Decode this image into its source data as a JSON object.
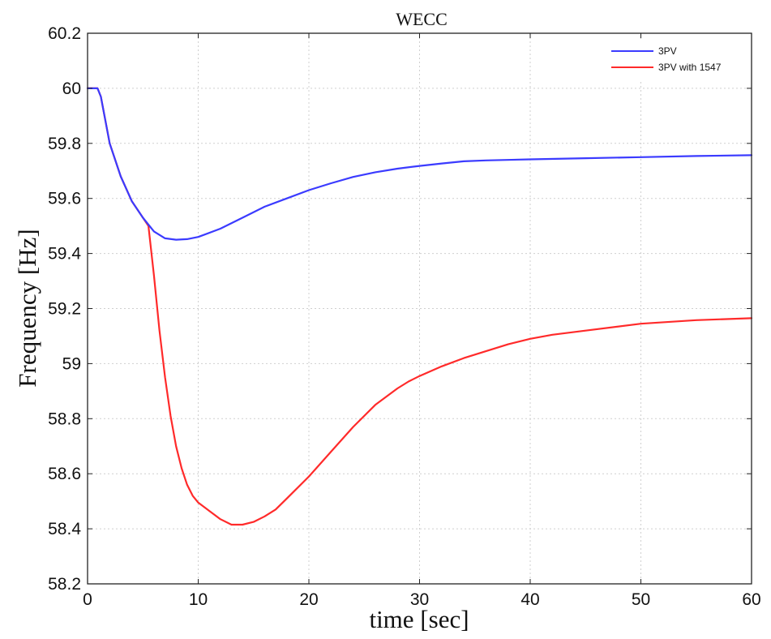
{
  "chart_data": {
    "type": "line",
    "title": "WECC",
    "xlabel": "time [sec]",
    "ylabel": "Frequency [Hz]",
    "xlim": [
      0,
      60
    ],
    "ylim": [
      58.2,
      60.2
    ],
    "xticks": [
      0,
      10,
      20,
      30,
      40,
      50,
      60
    ],
    "yticks": [
      58.2,
      58.4,
      58.6,
      58.8,
      59,
      59.2,
      59.4,
      59.6,
      59.8,
      60,
      60.2
    ],
    "grid": true,
    "legend_position": "top-right",
    "series": [
      {
        "name": "3PV",
        "color": "#3b3bff",
        "x": [
          0,
          0.9,
          1.2,
          2,
          3,
          4,
          5,
          6,
          7,
          8,
          9,
          10,
          12,
          14,
          16,
          18,
          20,
          22,
          24,
          26,
          28,
          30,
          32,
          34,
          36,
          40,
          45,
          50,
          55,
          60
        ],
        "y": [
          60.0,
          60.0,
          59.97,
          59.8,
          59.68,
          59.59,
          59.53,
          59.48,
          59.455,
          59.45,
          59.452,
          59.46,
          59.49,
          59.53,
          59.57,
          59.6,
          59.63,
          59.655,
          59.678,
          59.695,
          59.708,
          59.718,
          59.727,
          59.735,
          59.738,
          59.742,
          59.746,
          59.75,
          59.754,
          59.757
        ]
      },
      {
        "name": "3PV with 1547",
        "color": "#ff2a2a",
        "x": [
          0,
          0.9,
          1.2,
          2,
          3,
          4,
          5,
          5.5,
          6,
          6.5,
          7,
          7.5,
          8,
          8.5,
          9,
          9.5,
          10,
          10.5,
          11,
          12,
          13,
          14,
          15,
          16,
          17,
          18,
          20,
          22,
          24,
          26,
          28,
          29,
          30,
          32,
          34,
          36,
          38,
          40,
          42,
          45,
          50,
          55,
          60
        ],
        "y": [
          60.0,
          60.0,
          59.97,
          59.8,
          59.68,
          59.59,
          59.53,
          59.5,
          59.32,
          59.12,
          58.95,
          58.81,
          58.7,
          58.62,
          58.56,
          58.52,
          58.495,
          58.48,
          58.465,
          58.435,
          58.415,
          58.415,
          58.425,
          58.445,
          58.47,
          58.51,
          58.59,
          58.68,
          58.77,
          58.85,
          58.91,
          58.935,
          58.955,
          58.99,
          59.02,
          59.045,
          59.07,
          59.09,
          59.105,
          59.12,
          59.145,
          59.158,
          59.165
        ]
      }
    ]
  }
}
